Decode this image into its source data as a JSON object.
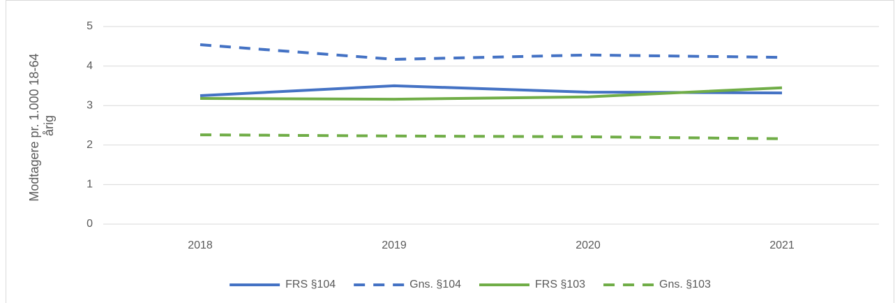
{
  "chart_data": {
    "type": "line",
    "ylabel": [
      "Modtagere pr. 1.000 18-64",
      "årig"
    ],
    "categories": [
      "2018",
      "2019",
      "2020",
      "2021"
    ],
    "series": [
      {
        "name": "FRS §104",
        "color": "#4472c4",
        "dashed": false,
        "values": [
          3.25,
          3.5,
          3.34,
          3.32
        ]
      },
      {
        "name": "Gns. §104",
        "color": "#4472c4",
        "dashed": true,
        "values": [
          4.54,
          4.17,
          4.28,
          4.22
        ]
      },
      {
        "name": "FRS §103",
        "color": "#70ad47",
        "dashed": false,
        "values": [
          3.18,
          3.16,
          3.22,
          3.45
        ]
      },
      {
        "name": "Gns. §103",
        "color": "#70ad47",
        "dashed": true,
        "values": [
          2.26,
          2.23,
          2.21,
          2.16
        ]
      }
    ],
    "ylim": [
      0,
      5
    ],
    "yticks": [
      0,
      1,
      2,
      3,
      4,
      5
    ],
    "grid": true,
    "legend": "bottom"
  }
}
